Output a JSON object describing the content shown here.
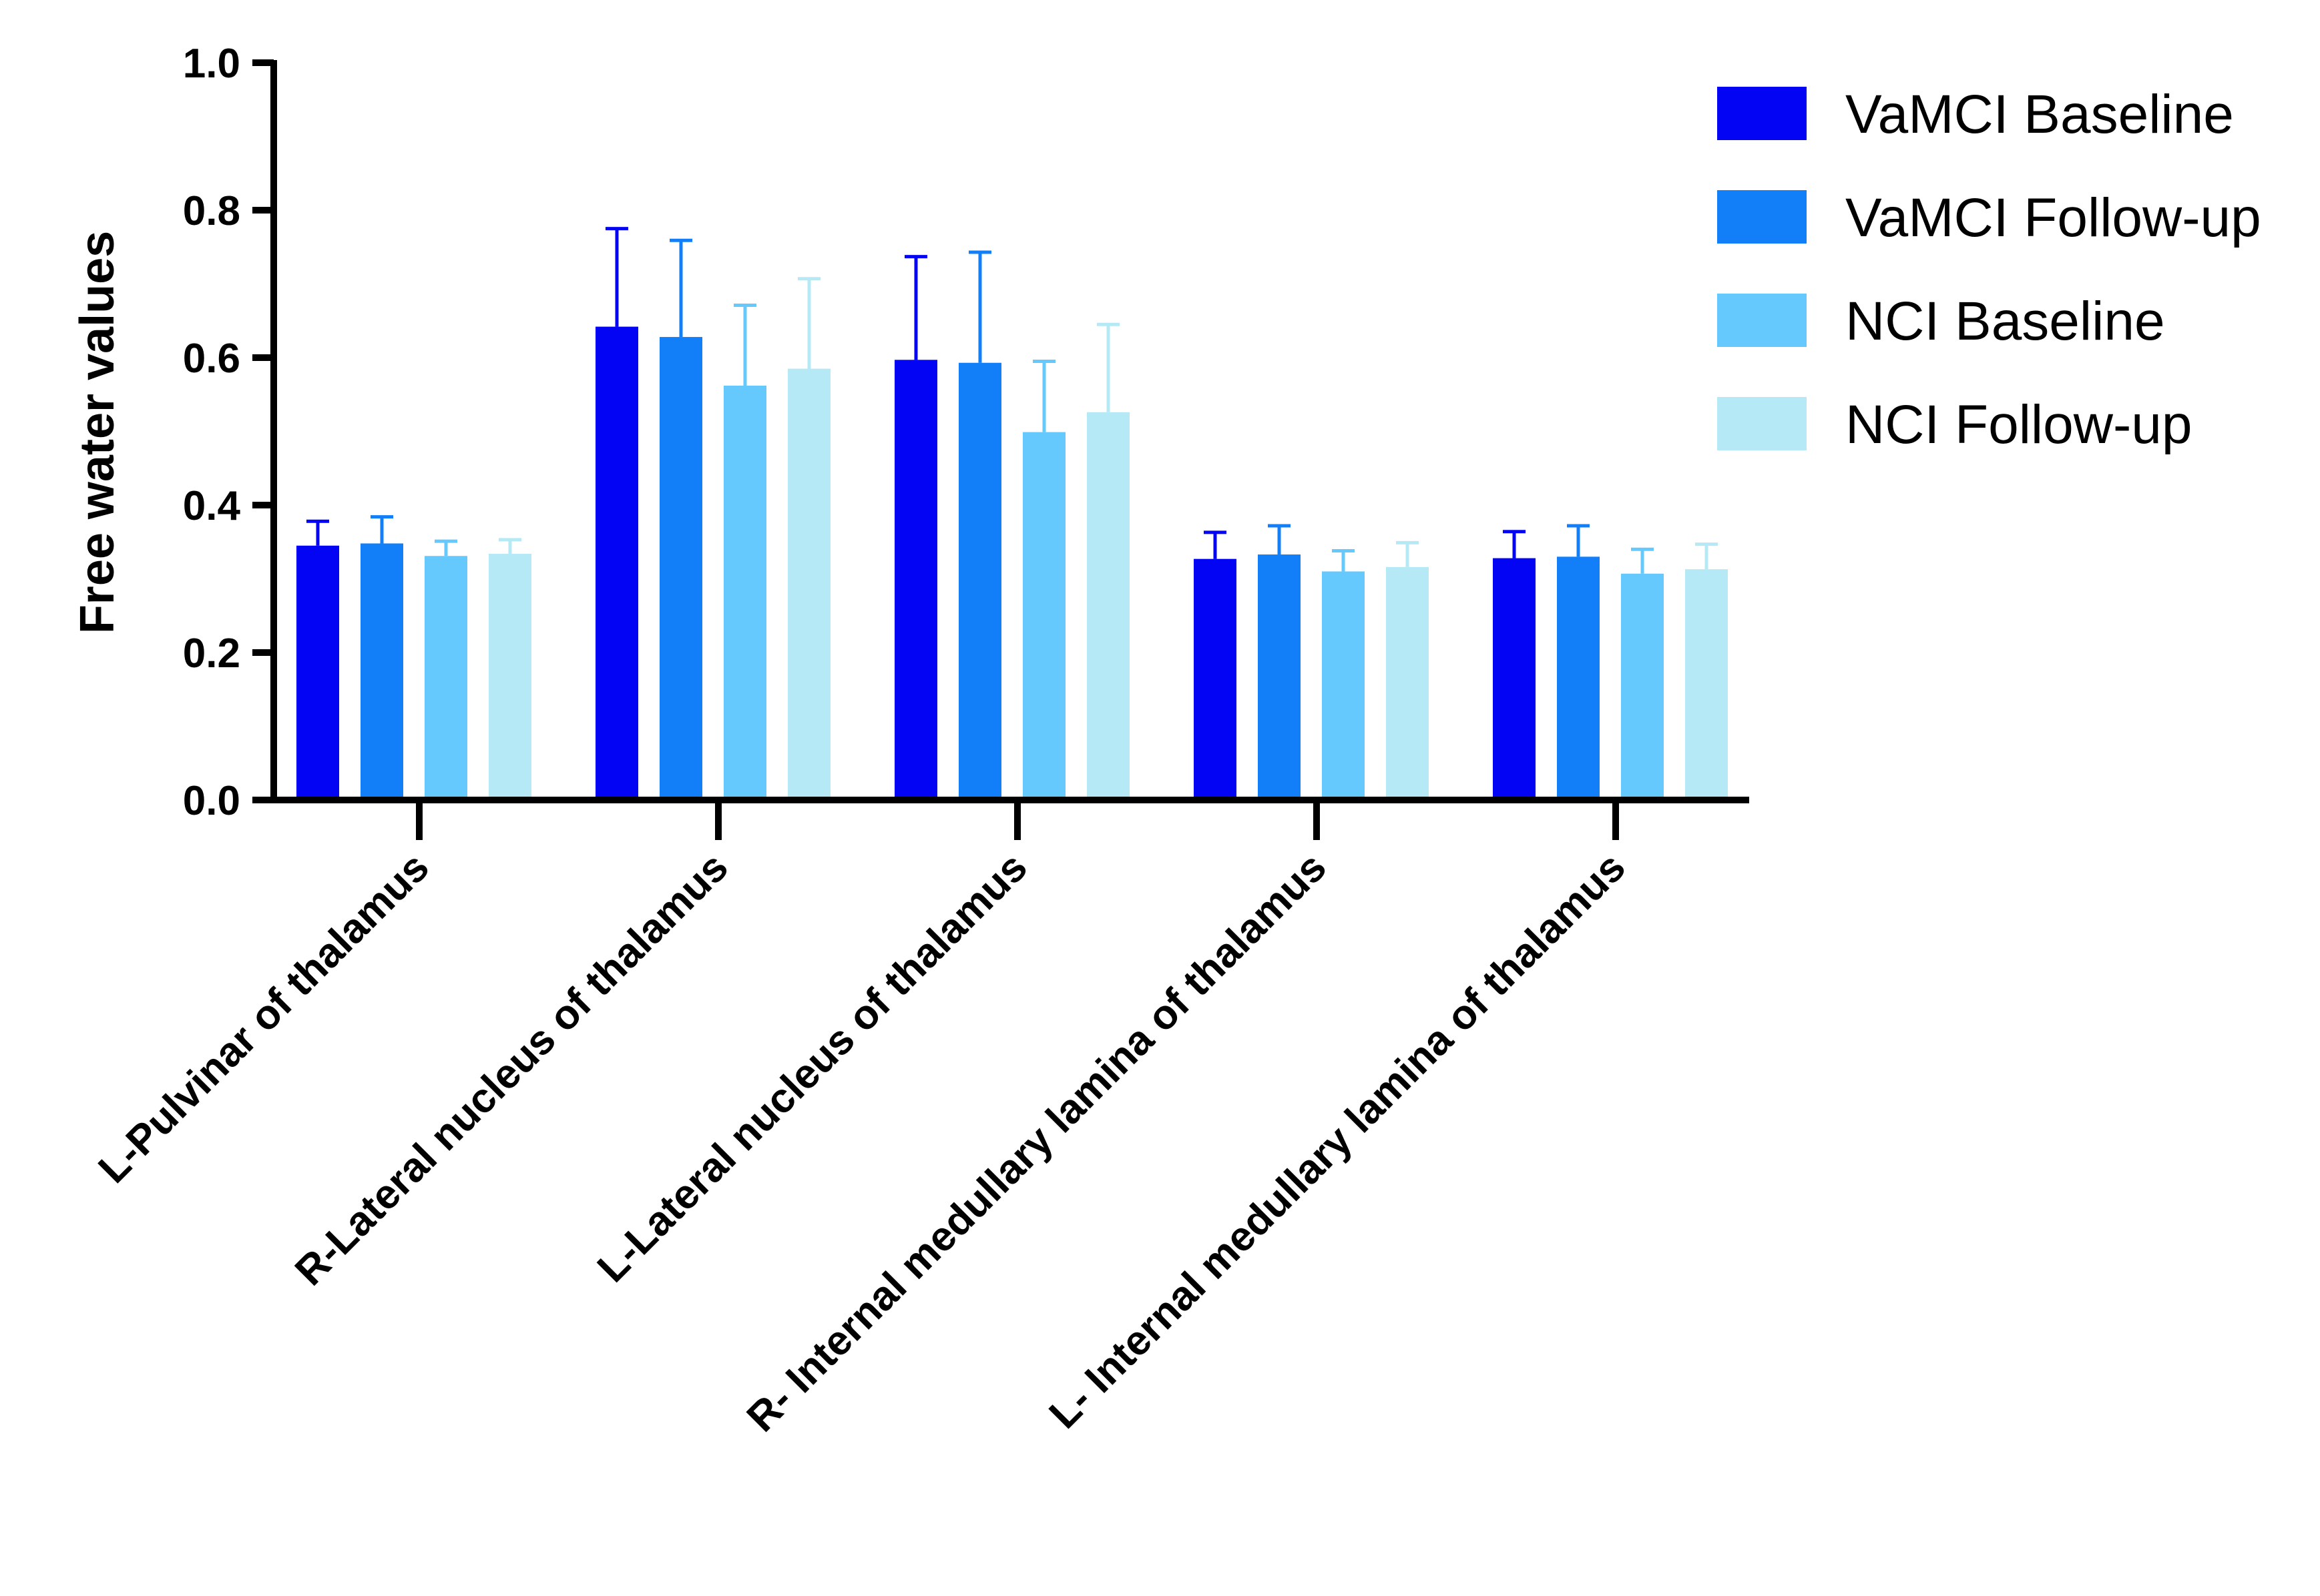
{
  "chart_data": {
    "type": "bar",
    "title": "",
    "xlabel": "",
    "ylabel": "Free water values",
    "ylim": [
      0,
      1.0
    ],
    "yticks": [
      "0.0",
      "0.2",
      "0.4",
      "0.6",
      "0.8",
      "1.0"
    ],
    "grid": false,
    "legend_position": "top-right",
    "categories": [
      "L-Pulvinar of thalamus",
      "R-Lateral nucleus of thalamus",
      "L-Lateral nucleus of thalamus",
      "R- Internal medullary lamina of thalamus",
      "L- Internal medullary lamina of thalamus"
    ],
    "series": [
      {
        "name": "VaMCI Baseline",
        "color": "#0404f4",
        "values": [
          0.345,
          0.642,
          0.597,
          0.327,
          0.328
        ],
        "errors": [
          0.033,
          0.133,
          0.14,
          0.036,
          0.036
        ]
      },
      {
        "name": "VaMCI Follow-up",
        "color": "#127ff9",
        "values": [
          0.348,
          0.628,
          0.593,
          0.333,
          0.33
        ],
        "errors": [
          0.036,
          0.131,
          0.15,
          0.039,
          0.042
        ]
      },
      {
        "name": "NCI Baseline",
        "color": "#66c9fd",
        "values": [
          0.331,
          0.562,
          0.499,
          0.31,
          0.307
        ],
        "errors": [
          0.02,
          0.109,
          0.096,
          0.028,
          0.033
        ]
      },
      {
        "name": "NCI Follow-up",
        "color": "#b5e9f6",
        "values": [
          0.334,
          0.585,
          0.526,
          0.316,
          0.313
        ],
        "errors": [
          0.019,
          0.122,
          0.119,
          0.033,
          0.034
        ]
      }
    ]
  }
}
